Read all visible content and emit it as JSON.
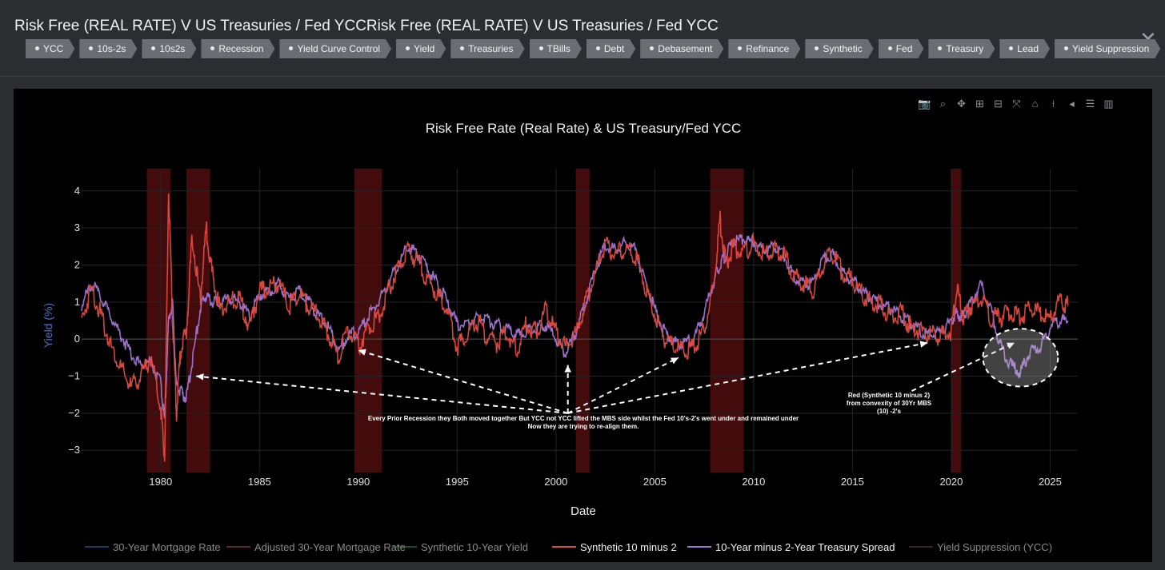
{
  "window": {
    "title": "Risk Free (REAL RATE) V US Treasuries / Fed YCCRisk Free (REAL RATE) V US Treasuries / Fed YCC",
    "close_icon": "close-icon",
    "tags": [
      "YCC",
      "10s-2s",
      "10s2s",
      "Recession",
      "Yield Curve Control",
      "Yield",
      "Treasuries",
      "TBills",
      "Debt",
      "Debasement",
      "Refinance",
      "Synthetic",
      "Fed",
      "Treasury",
      "Lead",
      "Yield Suppression"
    ]
  },
  "modebar": {
    "icons": [
      "camera-icon",
      "zoom-icon",
      "pan-icon",
      "zoom-in-icon",
      "zoom-out-icon",
      "autoscale-icon",
      "home-icon",
      "spike-lines-icon",
      "hover-closest-icon",
      "hover-compare-icon",
      "plotly-logo-icon"
    ]
  },
  "colors": {
    "background": "#000000",
    "recession_shade": "#5a0f0f",
    "synthetic_10_minus_2": "#e04a3f",
    "treasury_spread": "#a276d6",
    "mortgage_rate": "#3b6db8",
    "adjusted_mortgage": "#b0503a",
    "synthetic_10y": "#3a8a3a",
    "ycc": "#5a4a44"
  },
  "chart_data": {
    "type": "line",
    "title": "Risk Free Rate (Real Rate) & US Treasury/Fed YCC",
    "xlabel": "Date",
    "ylabel": "Yield (%)",
    "xlim": [
      1976.0,
      2026.4
    ],
    "ylim": [
      -3.6,
      4.6
    ],
    "x_ticks": [
      1980,
      1985,
      1990,
      1995,
      2000,
      2005,
      2010,
      2015,
      2020,
      2025
    ],
    "y_ticks": [
      -3,
      -2,
      -1,
      0,
      1,
      2,
      3,
      4
    ],
    "grid": true,
    "legend_position": "bottom",
    "recessions": [
      [
        1979.3,
        1980.5
      ],
      [
        1981.3,
        1982.5
      ],
      [
        1989.8,
        1991.2
      ],
      [
        2001.0,
        2001.7
      ],
      [
        2007.8,
        2009.5
      ],
      [
        2020.0,
        2020.5
      ]
    ],
    "series": [
      {
        "name": "30-Year Mortgage Rate",
        "legend_only": true,
        "x": [],
        "y": []
      },
      {
        "name": "Adjusted 30-Year Mortgage Rate",
        "legend_only": true,
        "x": [],
        "y": []
      },
      {
        "name": "Synthetic 10-Year Yield",
        "legend_only": true,
        "x": [],
        "y": []
      },
      {
        "name": "Synthetic 10 minus 2",
        "x": [
          1976.0,
          1976.5,
          1977.0,
          1977.5,
          1978.0,
          1978.5,
          1979.0,
          1979.5,
          1980.0,
          1980.2,
          1980.4,
          1980.6,
          1980.8,
          1981.0,
          1981.3,
          1981.6,
          1982.0,
          1982.3,
          1982.6,
          1983.0,
          1983.5,
          1984.0,
          1984.5,
          1985.0,
          1985.5,
          1986.0,
          1986.5,
          1987.0,
          1987.5,
          1988.0,
          1988.5,
          1989.0,
          1989.5,
          1990.0,
          1990.5,
          1991.0,
          1991.5,
          1992.0,
          1992.5,
          1993.0,
          1993.5,
          1994.0,
          1994.5,
          1995.0,
          1995.5,
          1996.0,
          1996.5,
          1997.0,
          1997.5,
          1998.0,
          1998.5,
          1999.0,
          1999.5,
          2000.0,
          2000.5,
          2001.0,
          2001.5,
          2002.0,
          2002.5,
          2003.0,
          2003.5,
          2004.0,
          2004.5,
          2005.0,
          2005.5,
          2006.0,
          2006.5,
          2007.0,
          2007.5,
          2008.0,
          2008.3,
          2008.6,
          2009.0,
          2009.5,
          2010.0,
          2010.5,
          2011.0,
          2011.5,
          2012.0,
          2012.5,
          2013.0,
          2013.5,
          2014.0,
          2014.5,
          2015.0,
          2015.5,
          2016.0,
          2016.5,
          2017.0,
          2017.5,
          2018.0,
          2018.5,
          2019.0,
          2019.5,
          2020.0,
          2020.3,
          2020.6,
          2021.0,
          2021.5,
          2022.0,
          2022.5,
          2023.0,
          2023.5,
          2024.0,
          2024.5,
          2025.0,
          2025.5,
          2025.9
        ],
        "y": [
          0.5,
          1.4,
          0.6,
          -0.2,
          -0.8,
          -1.3,
          -1.0,
          -0.5,
          -1.8,
          -3.2,
          4.0,
          0.5,
          -2.0,
          -0.3,
          0.2,
          2.8,
          1.0,
          3.0,
          1.8,
          0.8,
          1.0,
          1.1,
          0.3,
          1.3,
          1.4,
          1.5,
          0.9,
          1.2,
          0.9,
          0.6,
          0.1,
          -0.5,
          0.3,
          -0.2,
          0.3,
          0.6,
          1.3,
          1.9,
          2.4,
          2.1,
          1.6,
          1.2,
          0.8,
          -0.2,
          0.1,
          0.5,
          0.1,
          -0.1,
          0.2,
          -0.3,
          0.4,
          0.2,
          0.8,
          0.2,
          -0.2,
          0.1,
          1.0,
          1.8,
          2.5,
          2.3,
          2.4,
          2.3,
          1.5,
          0.7,
          0.0,
          -0.2,
          -0.3,
          -0.2,
          0.3,
          1.5,
          3.2,
          2.0,
          2.5,
          2.3,
          2.6,
          2.3,
          2.4,
          2.3,
          1.7,
          1.5,
          1.3,
          2.0,
          2.3,
          1.8,
          1.6,
          1.2,
          1.0,
          0.9,
          0.6,
          0.7,
          0.3,
          0.2,
          0.1,
          0.1,
          0.2,
          1.4,
          0.6,
          0.9,
          1.1,
          0.6,
          0.6,
          0.7,
          0.6,
          0.8,
          0.7,
          0.5,
          1.1,
          0.9
        ]
      },
      {
        "name": "10-Year minus 2-Year Treasury Spread",
        "x": [
          1976.0,
          1976.5,
          1977.0,
          1977.5,
          1978.0,
          1978.5,
          1979.0,
          1979.5,
          1980.0,
          1980.2,
          1980.4,
          1980.6,
          1980.8,
          1981.0,
          1981.3,
          1981.6,
          1982.0,
          1982.3,
          1982.6,
          1983.0,
          1983.5,
          1984.0,
          1984.5,
          1985.0,
          1985.5,
          1986.0,
          1986.5,
          1987.0,
          1987.5,
          1988.0,
          1988.5,
          1989.0,
          1989.5,
          1990.0,
          1990.5,
          1991.0,
          1991.5,
          1992.0,
          1992.5,
          1993.0,
          1993.5,
          1994.0,
          1994.5,
          1995.0,
          1995.5,
          1996.0,
          1996.5,
          1997.0,
          1997.5,
          1998.0,
          1998.5,
          1999.0,
          1999.5,
          2000.0,
          2000.5,
          2001.0,
          2001.5,
          2002.0,
          2002.5,
          2003.0,
          2003.5,
          2004.0,
          2004.5,
          2005.0,
          2005.5,
          2006.0,
          2006.5,
          2007.0,
          2007.5,
          2008.0,
          2008.3,
          2008.6,
          2009.0,
          2009.5,
          2010.0,
          2010.5,
          2011.0,
          2011.5,
          2012.0,
          2012.5,
          2013.0,
          2013.5,
          2014.0,
          2014.5,
          2015.0,
          2015.5,
          2016.0,
          2016.5,
          2017.0,
          2017.5,
          2018.0,
          2018.5,
          2019.0,
          2019.5,
          2020.0,
          2020.3,
          2020.6,
          2021.0,
          2021.5,
          2022.0,
          2022.5,
          2023.0,
          2023.5,
          2024.0,
          2024.5,
          2025.0,
          2025.5,
          2025.9
        ],
        "y": [
          0.9,
          1.5,
          1.1,
          0.6,
          0.1,
          -0.4,
          -0.7,
          -0.6,
          -1.2,
          -2.2,
          0.5,
          1.0,
          -1.3,
          -1.4,
          -1.6,
          -0.6,
          0.8,
          1.2,
          1.0,
          1.0,
          1.1,
          1.0,
          0.6,
          1.2,
          1.3,
          1.5,
          1.1,
          1.3,
          1.0,
          0.6,
          0.3,
          -0.3,
          0.1,
          0.2,
          0.6,
          1.0,
          1.5,
          2.0,
          2.5,
          2.3,
          1.9,
          1.5,
          1.0,
          0.4,
          0.4,
          0.6,
          0.5,
          0.4,
          0.3,
          0.1,
          0.2,
          0.3,
          0.4,
          0.0,
          -0.4,
          0.2,
          1.0,
          1.9,
          2.5,
          2.4,
          2.6,
          2.4,
          1.6,
          0.8,
          0.2,
          -0.1,
          -0.1,
          0.0,
          0.7,
          1.6,
          2.0,
          2.3,
          2.6,
          2.7,
          2.6,
          2.4,
          2.5,
          2.3,
          1.7,
          1.5,
          1.5,
          2.2,
          2.3,
          1.8,
          1.6,
          1.3,
          1.1,
          0.9,
          0.8,
          0.6,
          0.4,
          0.2,
          0.1,
          0.2,
          0.5,
          0.7,
          0.6,
          1.0,
          1.5,
          0.8,
          -0.2,
          -0.7,
          -0.9,
          -0.3,
          -0.2,
          0.3,
          0.5,
          0.5
        ]
      },
      {
        "name": "Yield Suppression (YCC)",
        "legend_only": true,
        "x": [],
        "y": []
      }
    ],
    "annotations": [
      {
        "text": "Every Prior Recession they Both moved together But YCC not YCC lifted the MBS side whilst the Fed 10's-2's went under and remained under"
      },
      {
        "text": "Now they are trying to re-align them."
      },
      {
        "text": "Red (Synthetic 10 minus 2)"
      },
      {
        "text": "from convexity of 30Yr MBS"
      },
      {
        "text": "(10) -2's"
      }
    ],
    "arrow_targets": [
      [
        1981.8,
        -1.0
      ],
      [
        1990.0,
        -0.3
      ],
      [
        2000.6,
        -0.7
      ],
      [
        2006.2,
        -0.5
      ],
      [
        2018.8,
        -0.1
      ],
      [
        2023.2,
        -0.1
      ]
    ],
    "arrow_origin": [
      2000.6,
      -2.0
    ],
    "arrow2_origin": [
      2018.0,
      -1.4
    ],
    "highlight_ellipse": {
      "center": [
        2023.5,
        -0.5
      ],
      "rx_years": 1.9,
      "ry": 0.78
    }
  }
}
